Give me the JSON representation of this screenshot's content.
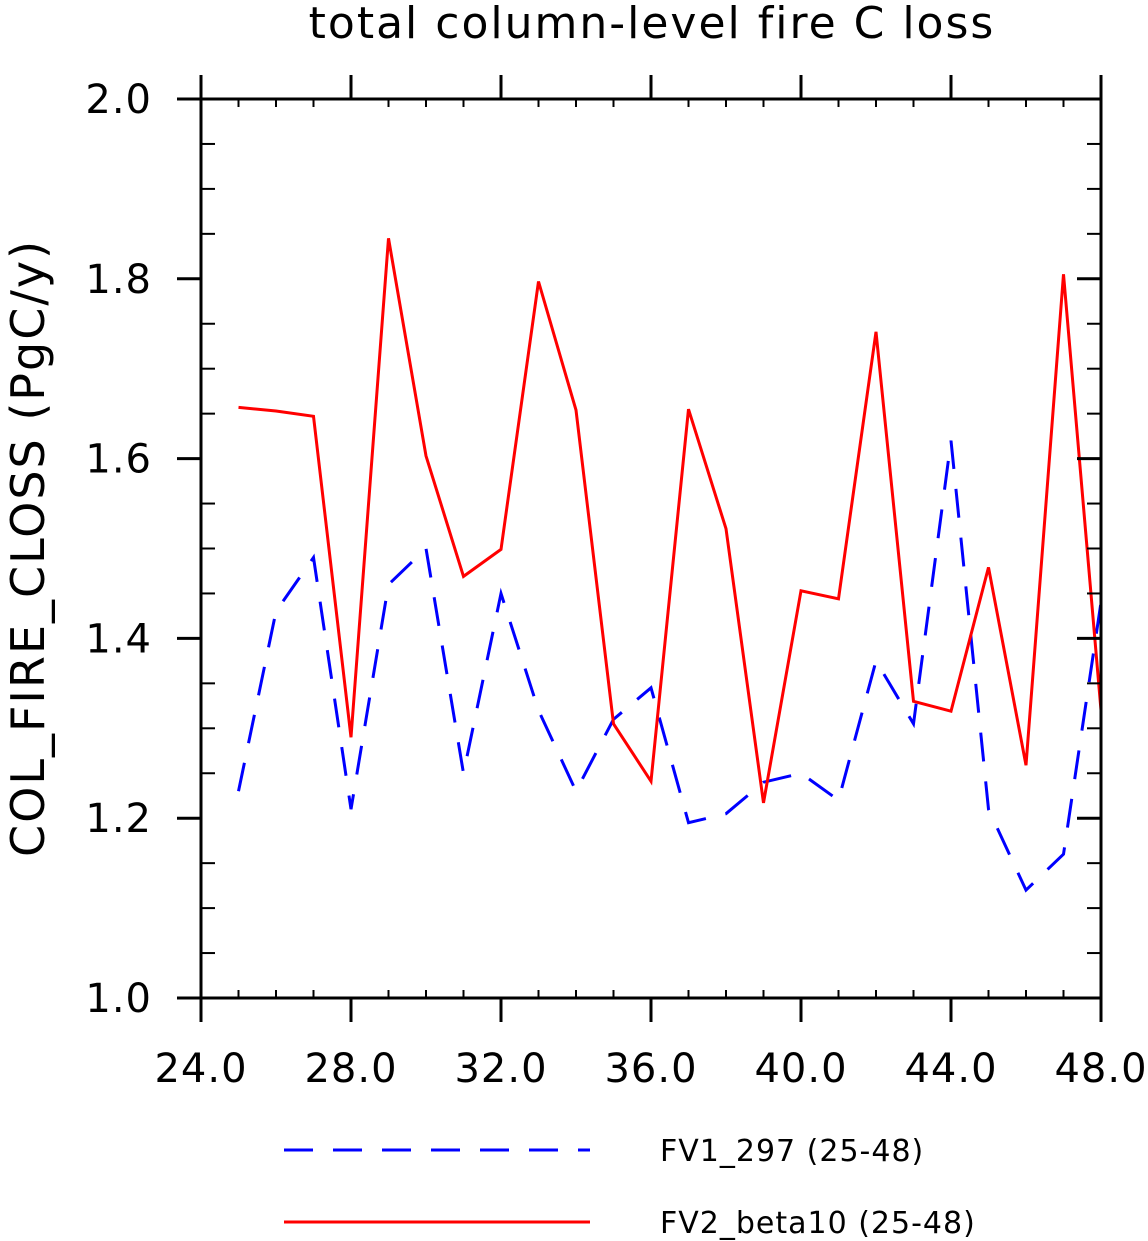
{
  "chart_data": {
    "type": "line",
    "title": "total column-level fire C loss",
    "xlabel": "",
    "ylabel": "COL_FIRE_CLOSS  (PgC/y)",
    "xlim": [
      24,
      48
    ],
    "ylim": [
      1.0,
      2.0
    ],
    "x_ticks": [
      24,
      28,
      32,
      36,
      40,
      44,
      48
    ],
    "x_tick_labels": [
      "24.0",
      "28.0",
      "32.0",
      "36.0",
      "40.0",
      "44.0",
      "48.0"
    ],
    "y_ticks": [
      1.0,
      1.2,
      1.4,
      1.6,
      1.8,
      2.0
    ],
    "y_tick_labels": [
      "1.0",
      "1.2",
      "1.4",
      "1.6",
      "1.8",
      "2.0"
    ],
    "grid": false,
    "legend_position": "bottom",
    "x": [
      25,
      26,
      27,
      28,
      29,
      30,
      31,
      32,
      33,
      34,
      35,
      36,
      37,
      38,
      39,
      40,
      41,
      42,
      43,
      44,
      45,
      46,
      47,
      48
    ],
    "series": [
      {
        "name": "FV1_297 (25-48)",
        "color": "#0000ff",
        "style": "dashed",
        "values": [
          1.23,
          1.43,
          1.49,
          1.21,
          1.46,
          1.5,
          1.25,
          1.45,
          1.32,
          1.23,
          1.31,
          1.345,
          1.195,
          1.205,
          1.24,
          1.25,
          1.22,
          1.375,
          1.305,
          1.62,
          1.21,
          1.12,
          1.16,
          1.44
        ]
      },
      {
        "name": "FV2_beta10 (25-48)",
        "color": "#ff0000",
        "style": "solid",
        "values": [
          1.657,
          1.653,
          1.647,
          1.29,
          1.845,
          1.603,
          1.469,
          1.499,
          1.797,
          1.654,
          1.305,
          1.241,
          1.655,
          1.522,
          1.217,
          1.453,
          1.444,
          1.741,
          1.33,
          1.319,
          1.479,
          1.259,
          1.805,
          1.32
        ]
      }
    ]
  }
}
